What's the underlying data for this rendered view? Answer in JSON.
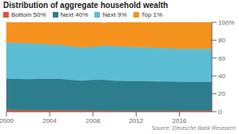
{
  "chart_data": {
    "type": "area",
    "title": "Distribution of aggregate household wealth",
    "annotations": [
      "Source: Deutsche Bank Research"
    ],
    "stacked": true,
    "grid": true,
    "legend": "top",
    "x": [
      2000,
      2001,
      2002,
      2003,
      2004,
      2005,
      2006,
      2007,
      2008,
      2009,
      2010,
      2011,
      2012,
      2013,
      2014,
      2015,
      2016,
      2017,
      2018,
      2019
    ],
    "xlim": [
      2000,
      2019
    ],
    "xticks": [
      2000,
      2004,
      2008,
      2012,
      2016
    ],
    "ylim": [
      0,
      100
    ],
    "yticks": [
      0,
      20,
      40,
      60,
      80,
      {
        "value": 100,
        "label": "100%"
      }
    ],
    "series": [
      {
        "name": "Bottom 50%",
        "color": "#e8503a",
        "values": [
          2.0,
          2.0,
          1.8,
          1.8,
          1.7,
          1.7,
          1.6,
          1.5,
          1.4,
          1.3,
          1.2,
          1.2,
          1.2,
          1.2,
          1.2,
          1.2,
          1.3,
          1.3,
          1.3,
          1.3
        ]
      },
      {
        "name": "Next 40%",
        "color": "#2e7d8c",
        "values": [
          35.0,
          34.5,
          34.5,
          34.8,
          35.0,
          35.0,
          34.0,
          33.0,
          34.0,
          34.5,
          33.5,
          33.0,
          33.0,
          33.0,
          32.5,
          32.5,
          32.0,
          32.0,
          32.0,
          32.0
        ]
      },
      {
        "name": "Next 9%",
        "color": "#5bbdd4",
        "values": [
          40.0,
          40.5,
          40.0,
          39.5,
          38.5,
          38.0,
          37.5,
          37.5,
          37.0,
          38.0,
          38.5,
          38.5,
          38.0,
          38.0,
          37.5,
          37.5,
          37.0,
          37.0,
          37.0,
          37.0
        ]
      },
      {
        "name": "Top 1%",
        "color": "#f5921e",
        "values": [
          23.0,
          23.0,
          23.7,
          23.9,
          24.8,
          25.3,
          26.9,
          28.0,
          27.6,
          25.2,
          26.8,
          27.3,
          27.8,
          27.8,
          28.8,
          28.8,
          29.7,
          29.7,
          29.7,
          29.7
        ]
      }
    ]
  }
}
